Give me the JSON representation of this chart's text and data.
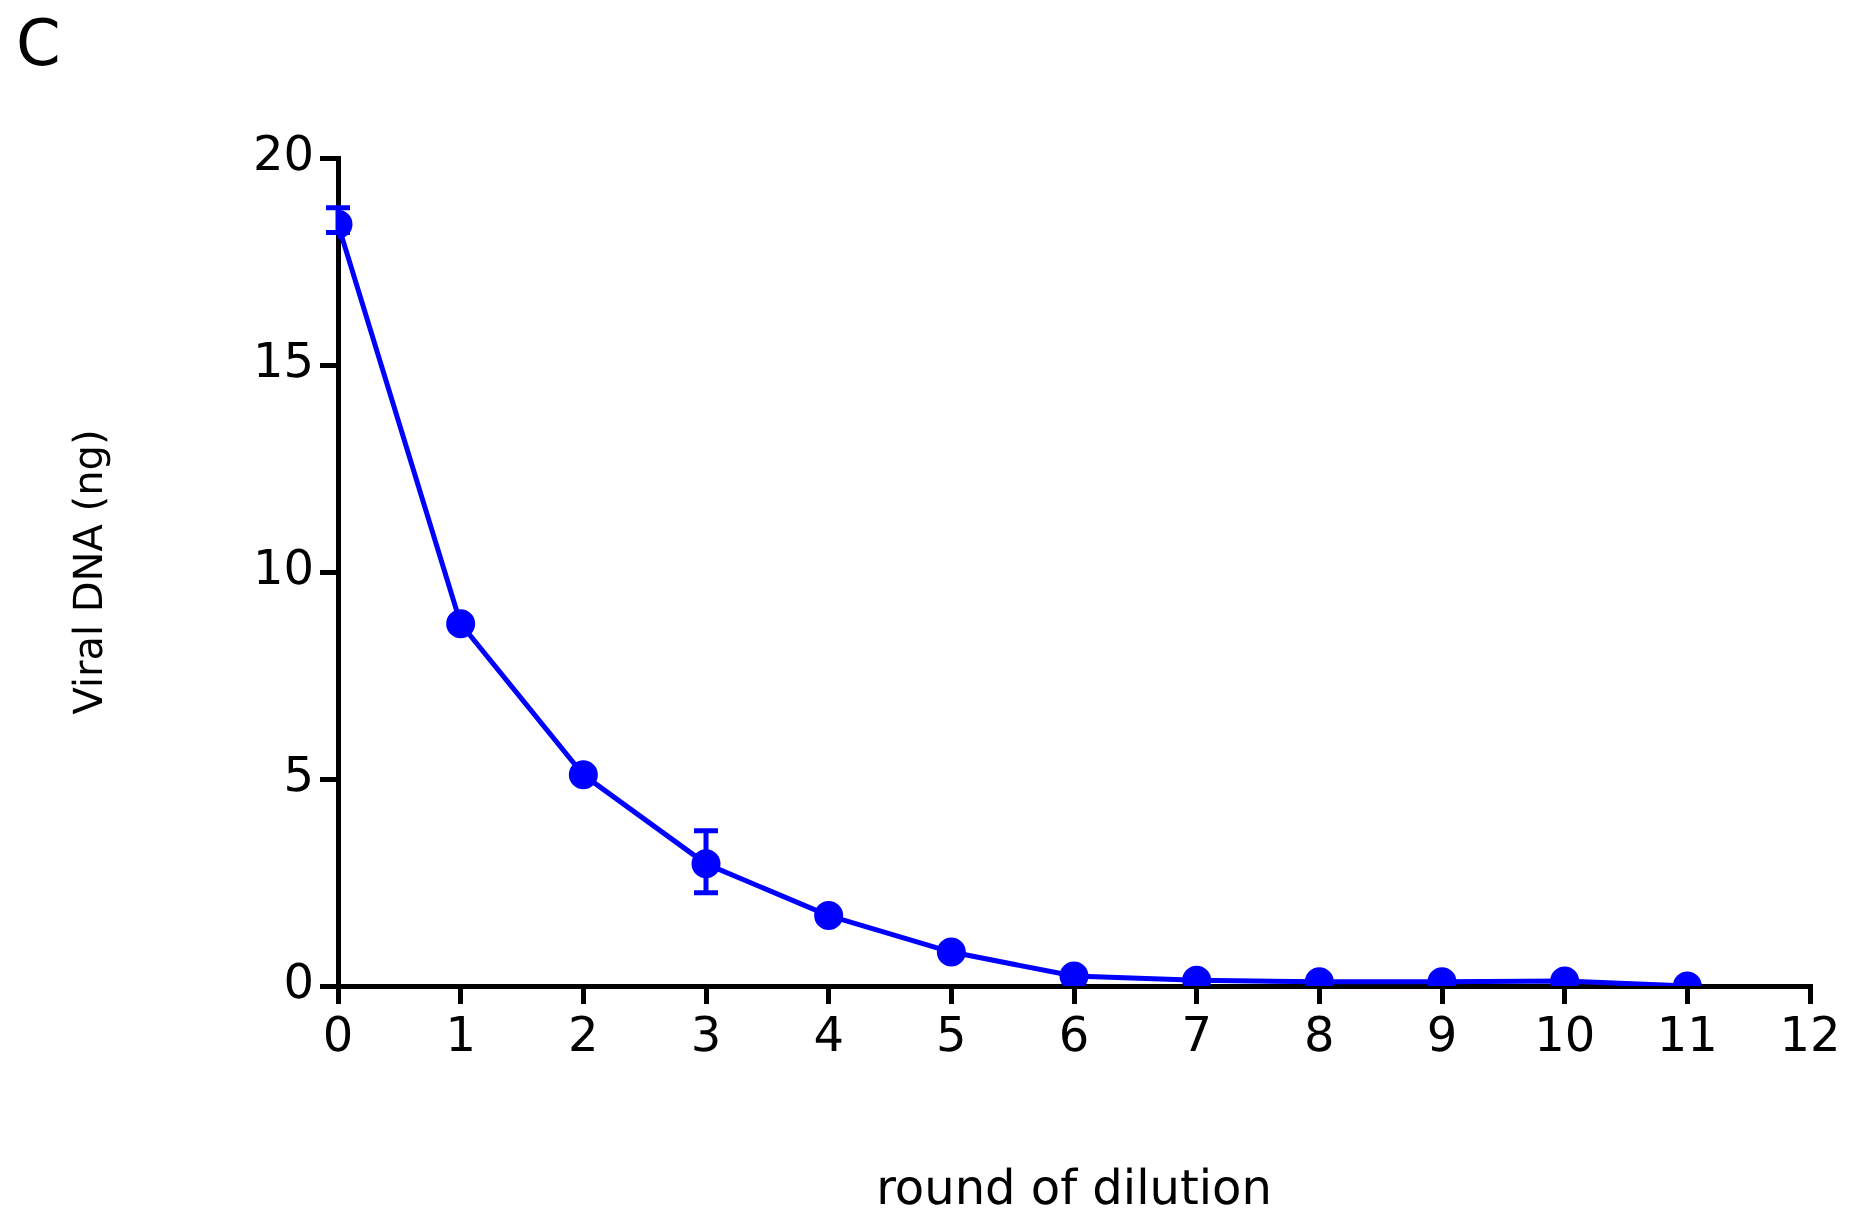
{
  "chart_data": {
    "type": "line",
    "xlabel": "round of dilution",
    "ylabel": "Viral DNA (ng)",
    "annotations": [
      "C"
    ],
    "x": [
      0,
      1,
      2,
      3,
      4,
      5,
      6,
      7,
      8,
      9,
      10,
      11
    ],
    "series": [
      {
        "color": "#0000ff",
        "values": [
          18.4,
          8.75,
          5.1,
          2.95,
          1.7,
          0.82,
          0.24,
          0.14,
          0.1,
          0.1,
          0.12,
          0
        ],
        "errors": [
          [
            18.2,
            18.8
          ],
          null,
          null,
          [
            2.25,
            3.75
          ],
          null,
          null,
          null,
          null,
          null,
          null,
          null,
          null
        ]
      }
    ],
    "xlim": [
      0,
      12
    ],
    "xticks": [
      0,
      1,
      2,
      3,
      4,
      5,
      6,
      7,
      8,
      9,
      10,
      11,
      12
    ],
    "ylim": [
      0,
      20
    ],
    "yticks": [
      0,
      5,
      10,
      15,
      20
    ],
    "grid": false,
    "legend": false,
    "marker": "circle",
    "line_style": "solid"
  }
}
